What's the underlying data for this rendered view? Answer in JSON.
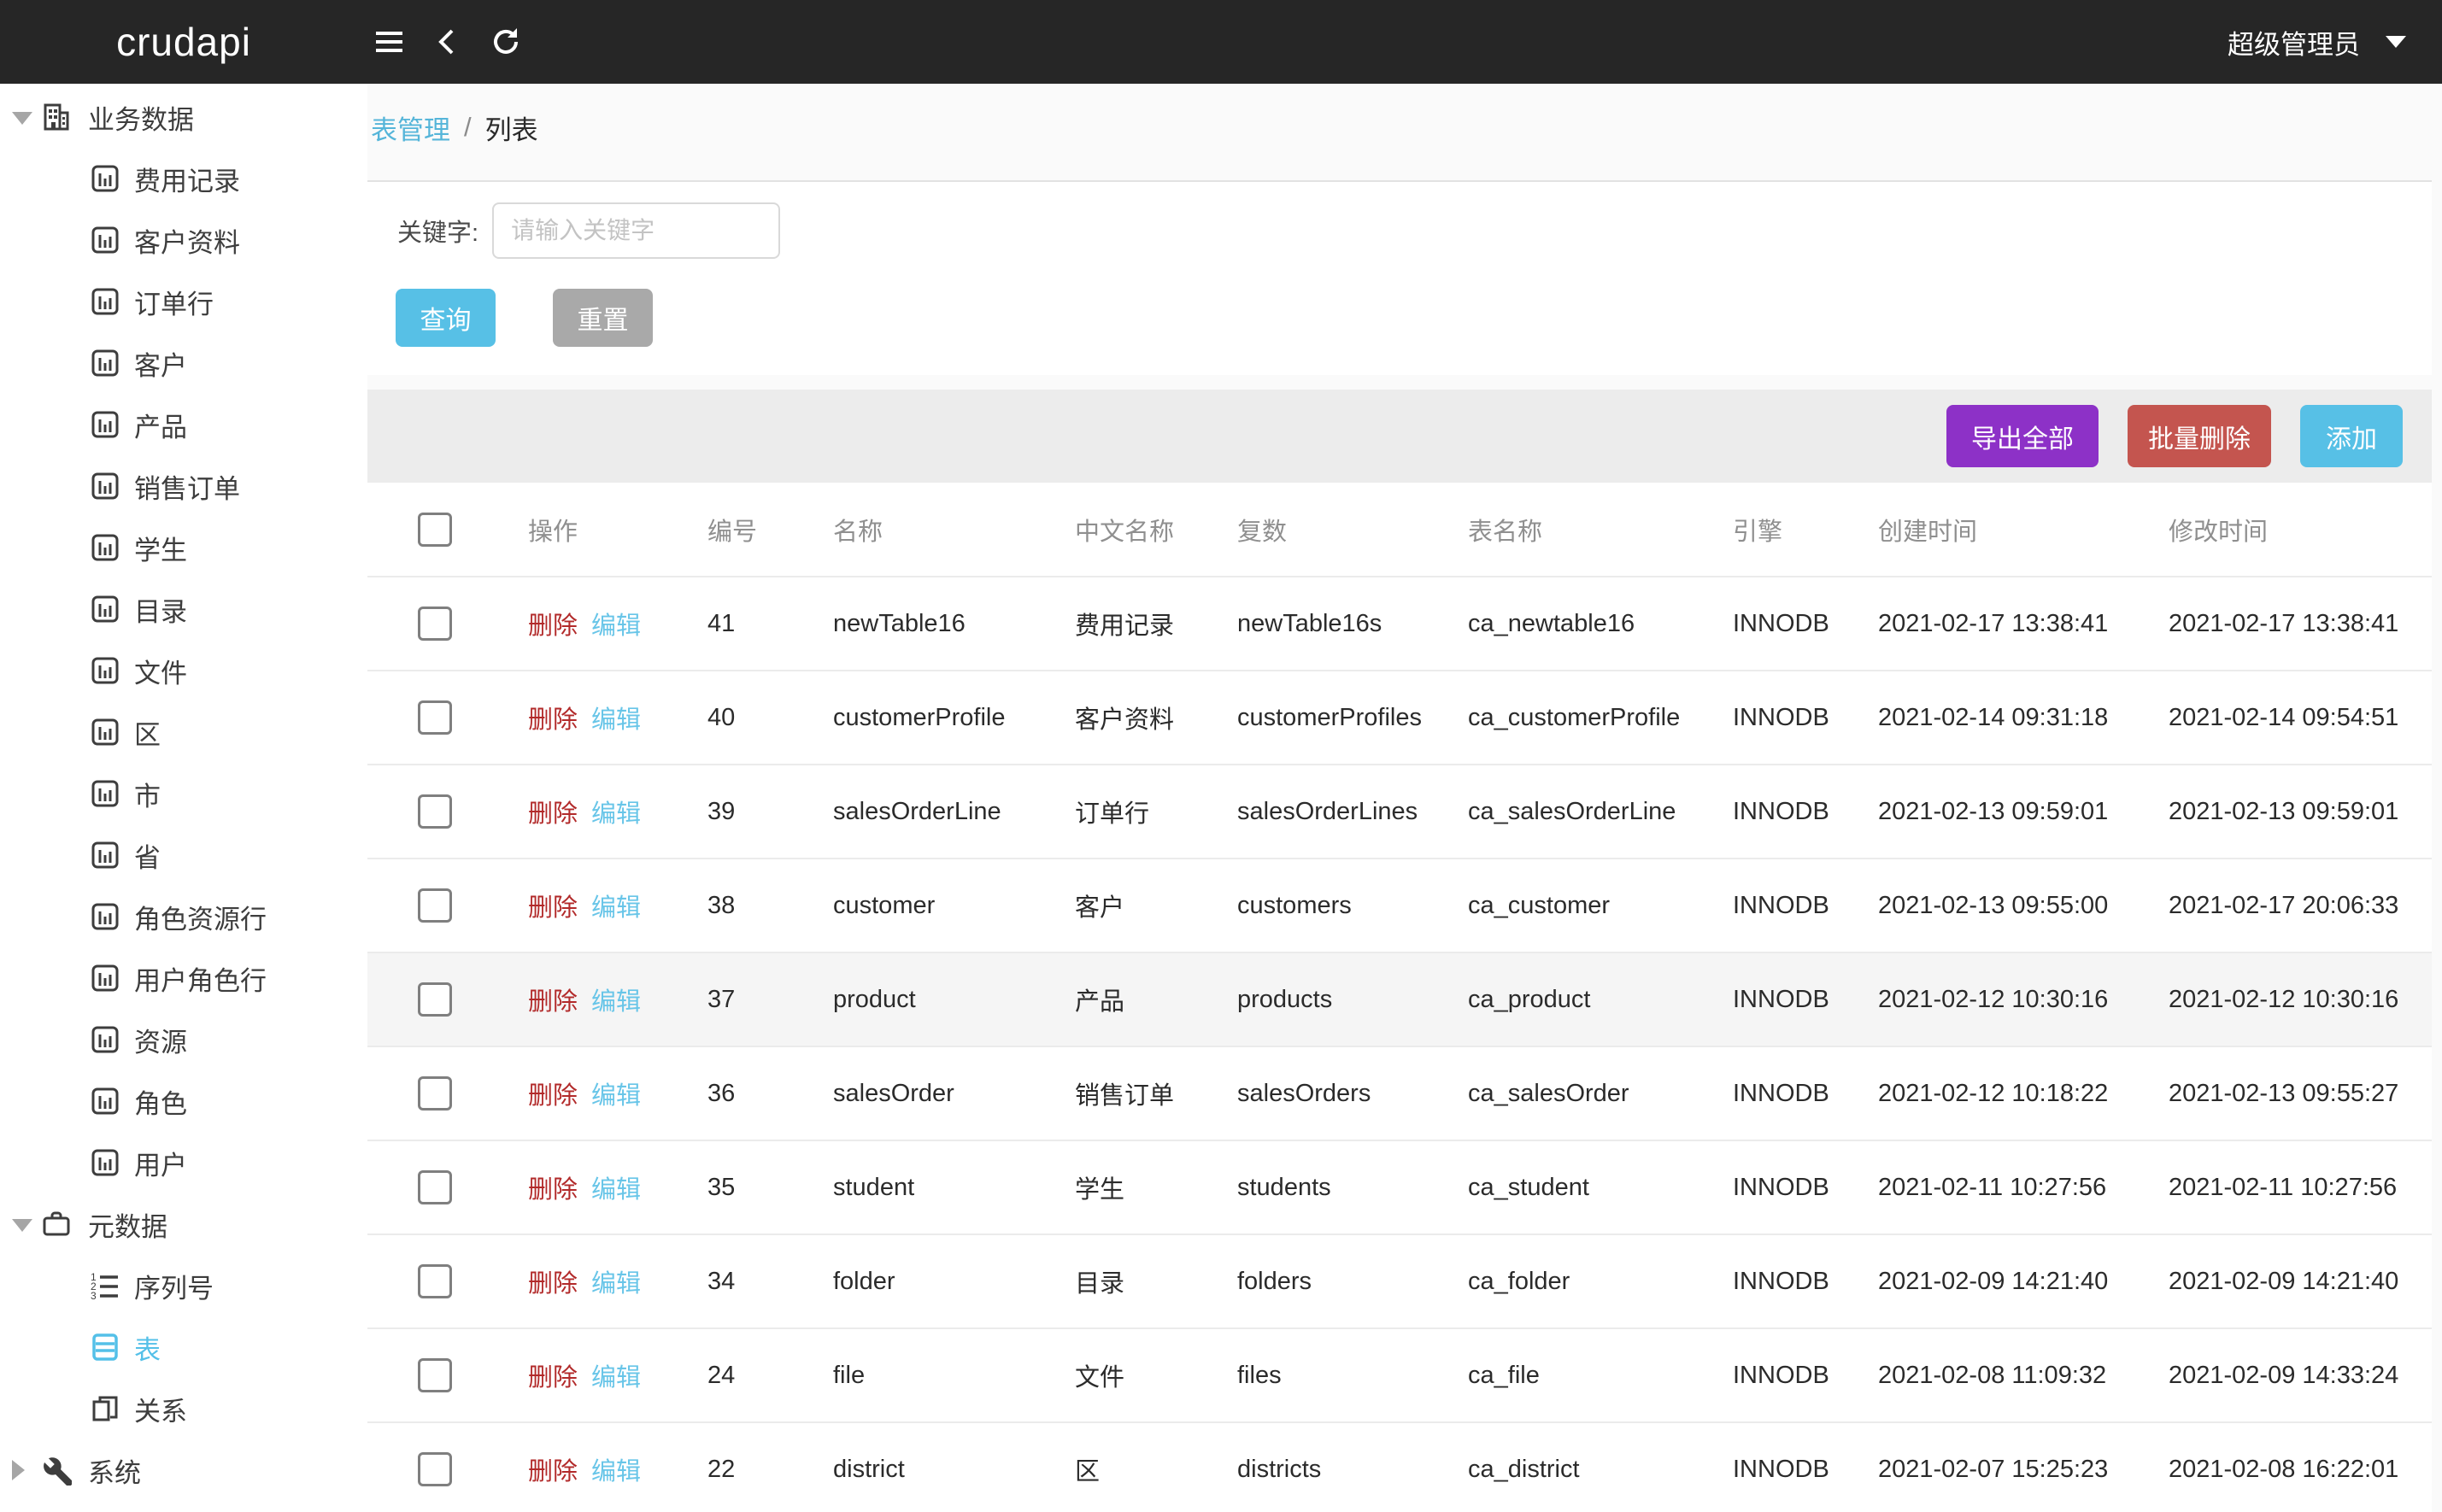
{
  "header": {
    "logo": "crudapi",
    "user_label": "超级管理员"
  },
  "breadcrumb": {
    "link": "表管理",
    "separator": "/",
    "current": "列表"
  },
  "search": {
    "label": "关键字:",
    "placeholder": "请输入关键字",
    "value": "",
    "query_button": "查询",
    "reset_button": "重置"
  },
  "toolbar": {
    "export_all": "导出全部",
    "bulk_delete": "批量删除",
    "add": "添加"
  },
  "sidebar": {
    "groups": [
      {
        "key": "business-data",
        "label": "业务数据",
        "icon": "building-icon",
        "expanded": true,
        "children": [
          {
            "key": "expense-record",
            "label": "费用记录",
            "icon": "bar-chart-icon"
          },
          {
            "key": "customer-profile",
            "label": "客户资料",
            "icon": "bar-chart-icon"
          },
          {
            "key": "sales-order-line",
            "label": "订单行",
            "icon": "bar-chart-icon"
          },
          {
            "key": "customer",
            "label": "客户",
            "icon": "bar-chart-icon"
          },
          {
            "key": "product",
            "label": "产品",
            "icon": "bar-chart-icon"
          },
          {
            "key": "sales-order",
            "label": "销售订单",
            "icon": "bar-chart-icon"
          },
          {
            "key": "student",
            "label": "学生",
            "icon": "bar-chart-icon"
          },
          {
            "key": "folder",
            "label": "目录",
            "icon": "bar-chart-icon"
          },
          {
            "key": "file",
            "label": "文件",
            "icon": "bar-chart-icon"
          },
          {
            "key": "district",
            "label": "区",
            "icon": "bar-chart-icon"
          },
          {
            "key": "city",
            "label": "市",
            "icon": "bar-chart-icon"
          },
          {
            "key": "province",
            "label": "省",
            "icon": "bar-chart-icon"
          },
          {
            "key": "role-resource-line",
            "label": "角色资源行",
            "icon": "bar-chart-icon"
          },
          {
            "key": "user-role-line",
            "label": "用户角色行",
            "icon": "bar-chart-icon"
          },
          {
            "key": "resource",
            "label": "资源",
            "icon": "bar-chart-icon"
          },
          {
            "key": "role",
            "label": "角色",
            "icon": "bar-chart-icon"
          },
          {
            "key": "user",
            "label": "用户",
            "icon": "bar-chart-icon"
          }
        ]
      },
      {
        "key": "metadata",
        "label": "元数据",
        "icon": "briefcase-icon",
        "expanded": true,
        "children": [
          {
            "key": "sequence",
            "label": "序列号",
            "icon": "numbered-list-icon"
          },
          {
            "key": "tables",
            "label": "表",
            "icon": "table-icon",
            "active": true
          },
          {
            "key": "relation",
            "label": "关系",
            "icon": "relation-icon"
          }
        ]
      },
      {
        "key": "system",
        "label": "系统",
        "icon": "wrench-icon",
        "expanded": false,
        "children": []
      }
    ]
  },
  "table": {
    "columns": [
      "操作",
      "编号",
      "名称",
      "中文名称",
      "复数",
      "表名称",
      "引擎",
      "创建时间",
      "修改时间"
    ],
    "row_actions": {
      "delete": "删除",
      "edit": "编辑"
    },
    "rows": [
      {
        "id": 41,
        "name": "newTable16",
        "caption": "费用记录",
        "plural": "newTable16s",
        "table_name": "ca_newtable16",
        "engine": "INNODB",
        "created": "2021-02-17 13:38:41",
        "modified": "2021-02-17 13:38:41"
      },
      {
        "id": 40,
        "name": "customerProfile",
        "caption": "客户资料",
        "plural": "customerProfiles",
        "table_name": "ca_customerProfile",
        "engine": "INNODB",
        "created": "2021-02-14 09:31:18",
        "modified": "2021-02-14 09:54:51"
      },
      {
        "id": 39,
        "name": "salesOrderLine",
        "caption": "订单行",
        "plural": "salesOrderLines",
        "table_name": "ca_salesOrderLine",
        "engine": "INNODB",
        "created": "2021-02-13 09:59:01",
        "modified": "2021-02-13 09:59:01"
      },
      {
        "id": 38,
        "name": "customer",
        "caption": "客户",
        "plural": "customers",
        "table_name": "ca_customer",
        "engine": "INNODB",
        "created": "2021-02-13 09:55:00",
        "modified": "2021-02-17 20:06:33"
      },
      {
        "id": 37,
        "name": "product",
        "caption": "产品",
        "plural": "products",
        "table_name": "ca_product",
        "engine": "INNODB",
        "created": "2021-02-12 10:30:16",
        "modified": "2021-02-12 10:30:16",
        "highlighted": true
      },
      {
        "id": 36,
        "name": "salesOrder",
        "caption": "销售订单",
        "plural": "salesOrders",
        "table_name": "ca_salesOrder",
        "engine": "INNODB",
        "created": "2021-02-12 10:18:22",
        "modified": "2021-02-13 09:55:27"
      },
      {
        "id": 35,
        "name": "student",
        "caption": "学生",
        "plural": "students",
        "table_name": "ca_student",
        "engine": "INNODB",
        "created": "2021-02-11 10:27:56",
        "modified": "2021-02-11 10:27:56"
      },
      {
        "id": 34,
        "name": "folder",
        "caption": "目录",
        "plural": "folders",
        "table_name": "ca_folder",
        "engine": "INNODB",
        "created": "2021-02-09 14:21:40",
        "modified": "2021-02-09 14:21:40"
      },
      {
        "id": 24,
        "name": "file",
        "caption": "文件",
        "plural": "files",
        "table_name": "ca_file",
        "engine": "INNODB",
        "created": "2021-02-08 11:09:32",
        "modified": "2021-02-09 14:33:24"
      },
      {
        "id": 22,
        "name": "district",
        "caption": "区",
        "plural": "districts",
        "table_name": "ca_district",
        "engine": "INNODB",
        "created": "2021-02-07 15:25:23",
        "modified": "2021-02-08 16:22:01"
      }
    ]
  },
  "colors": {
    "topbar_bg": "#262626",
    "accent_blue": "#57c0e6",
    "active_item_blue": "#54c0e8",
    "breadcrumb_link_blue": "#55b5d9",
    "export_purple": "#8d31c7",
    "bulk_delete_red": "#c4554f",
    "delete_link_red": "#b22a2a",
    "edit_link_blue": "#68c5e8",
    "toolbar_band_gray": "#ececec",
    "reset_gray": "#a9a9a9"
  }
}
